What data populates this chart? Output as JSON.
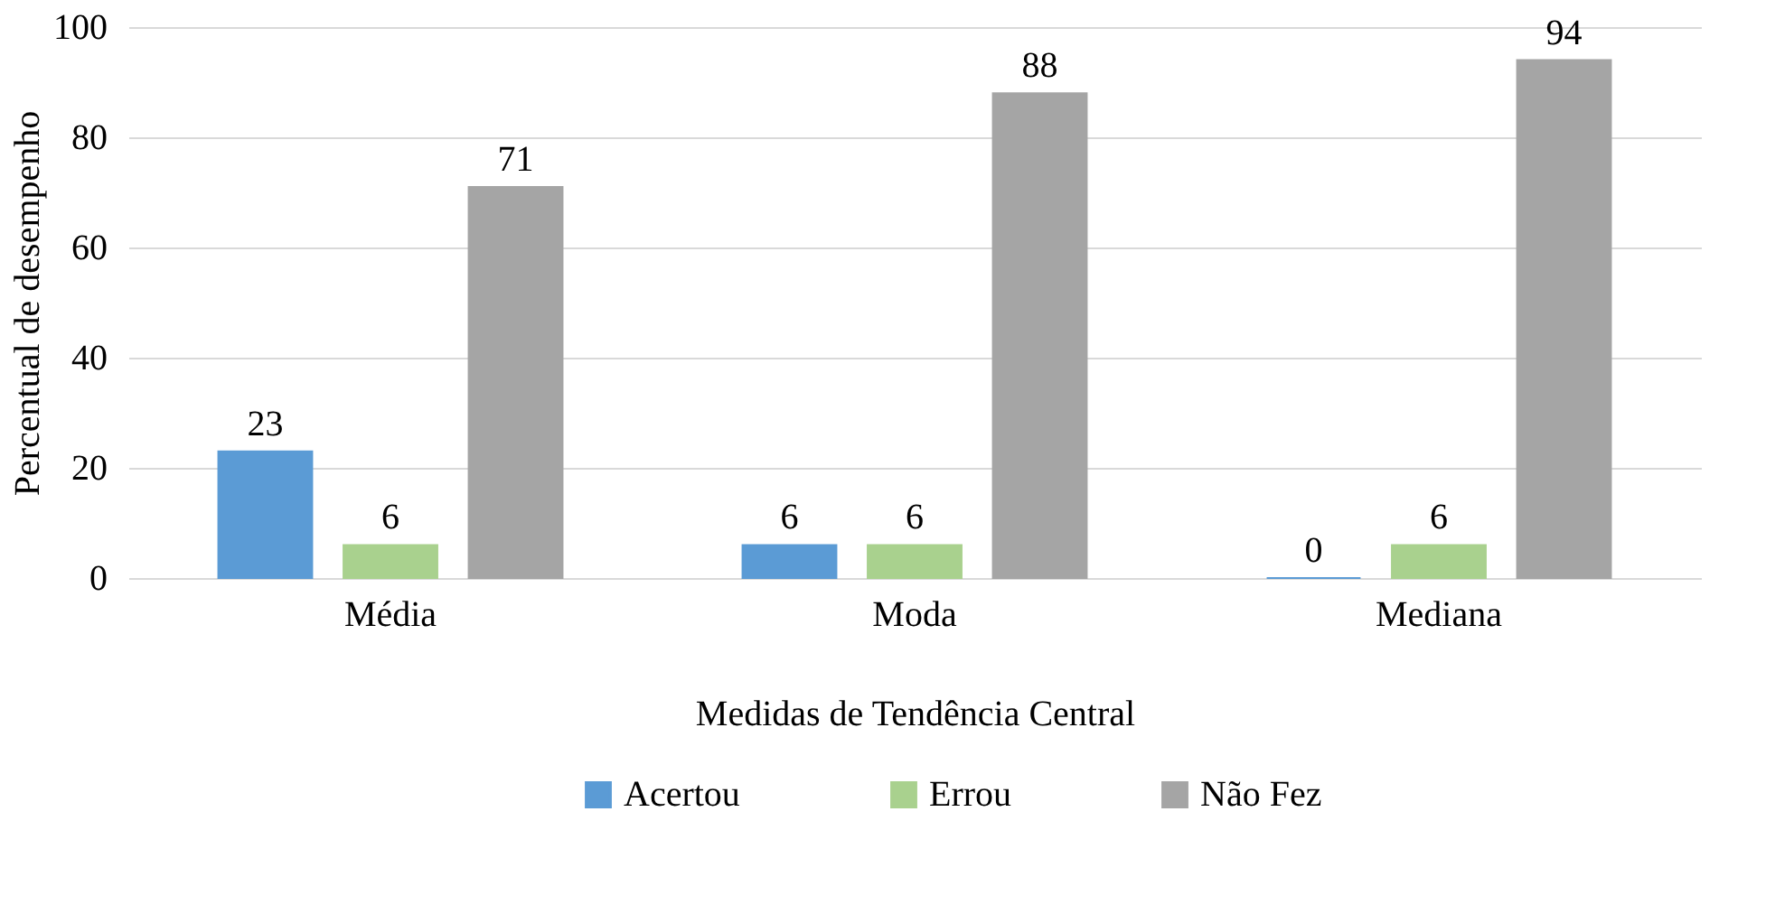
{
  "chart_data": {
    "type": "bar",
    "xlabel": "Medidas de Tendência Central",
    "ylabel": "Percentual de desempenho",
    "categories": [
      "Média",
      "Moda",
      "Mediana"
    ],
    "series": [
      {
        "name": "Acertou",
        "color": "#5b9bd5",
        "values": [
          23,
          6,
          0
        ]
      },
      {
        "name": "Errou",
        "color": "#a9d18e",
        "values": [
          6,
          6,
          6
        ]
      },
      {
        "name": "Não Fez",
        "color": "#a5a5a5",
        "values": [
          71,
          88,
          94
        ]
      }
    ],
    "ylim": [
      0,
      100
    ],
    "yticks": [
      0,
      20,
      40,
      60,
      80,
      100
    ],
    "grid": "y",
    "legend": "bottom",
    "data_labels": true
  }
}
